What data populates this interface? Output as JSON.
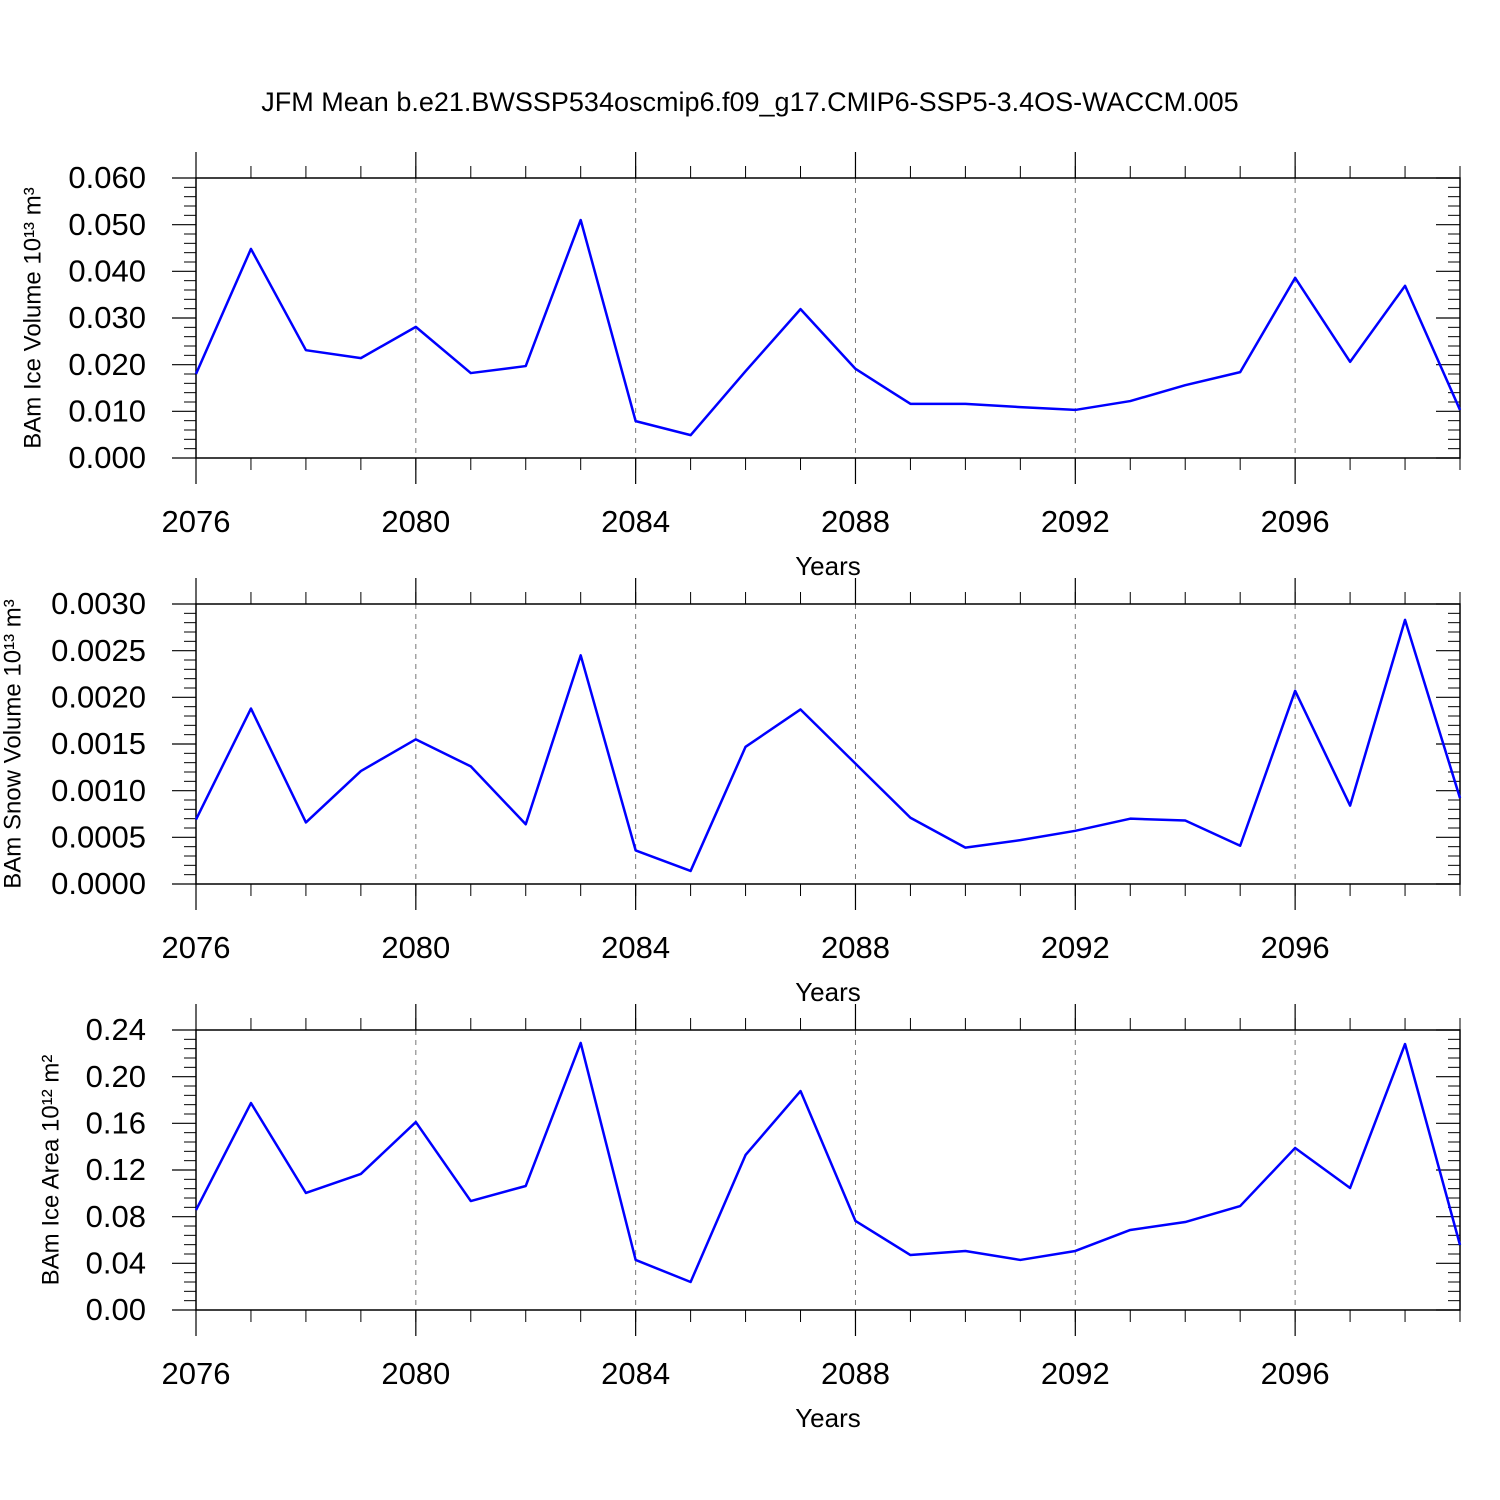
{
  "title": "JFM Mean b.e21.BWSSP534oscmip6.f09_g17.CMIP6-SSP5-3.4OS-WACCM.005",
  "chart_data": [
    {
      "type": "line",
      "ylabel": "BAm Ice Volume 10¹³ m³",
      "xlabel": "Years",
      "x": [
        2076,
        2077,
        2078,
        2079,
        2080,
        2081,
        2082,
        2083,
        2084,
        2085,
        2086,
        2087,
        2088,
        2089,
        2090,
        2091,
        2092,
        2093,
        2094,
        2095,
        2096,
        2097,
        2098,
        2099
      ],
      "series": [
        {
          "color": "#0000ff",
          "values": [
            0.018,
            0.0448,
            0.0231,
            0.0214,
            0.0281,
            0.0182,
            0.0197,
            0.051,
            0.0079,
            0.0049,
            0.0186,
            0.0319,
            0.0191,
            0.0116,
            0.0116,
            0.0109,
            0.0103,
            0.0122,
            0.0156,
            0.0184,
            0.0386,
            0.0206,
            0.0369,
            0.0103
          ]
        }
      ],
      "xlim": [
        2076,
        2099
      ],
      "xticks": [
        2076,
        2080,
        2084,
        2088,
        2092,
        2096
      ],
      "ylim": [
        0,
        0.06
      ],
      "yticks": [
        {
          "value": 0,
          "label": "0.000"
        },
        {
          "value": 0.01,
          "label": "0.010"
        },
        {
          "value": 0.02,
          "label": "0.020"
        },
        {
          "value": 0.03,
          "label": "0.030"
        },
        {
          "value": 0.04,
          "label": "0.040"
        },
        {
          "value": 0.05,
          "label": "0.050"
        },
        {
          "value": 0.06,
          "label": "0.060"
        }
      ],
      "grid": true
    },
    {
      "type": "line",
      "ylabel": "BAm Snow Volume 10¹³ m³",
      "xlabel": "Years",
      "x": [
        2076,
        2077,
        2078,
        2079,
        2080,
        2081,
        2082,
        2083,
        2084,
        2085,
        2086,
        2087,
        2088,
        2089,
        2090,
        2091,
        2092,
        2093,
        2094,
        2095,
        2096,
        2097,
        2098,
        2099
      ],
      "series": [
        {
          "color": "#0000ff",
          "values": [
            0.00069,
            0.00188,
            0.00066,
            0.00121,
            0.00155,
            0.00126,
            0.00064,
            0.00245,
            0.00036,
            0.00014,
            0.00147,
            0.00187,
            0.00129,
            0.00071,
            0.00039,
            0.00047,
            0.00057,
            0.0007,
            0.00068,
            0.00041,
            0.00207,
            0.00084,
            0.00283,
            0.00092
          ]
        }
      ],
      "xlim": [
        2076,
        2099
      ],
      "xticks": [
        2076,
        2080,
        2084,
        2088,
        2092,
        2096
      ],
      "ylim": [
        0,
        0.003
      ],
      "yticks": [
        {
          "value": 0,
          "label": "0.0000"
        },
        {
          "value": 0.0005,
          "label": "0.0005"
        },
        {
          "value": 0.001,
          "label": "0.0010"
        },
        {
          "value": 0.0015,
          "label": "0.0015"
        },
        {
          "value": 0.002,
          "label": "0.0020"
        },
        {
          "value": 0.0025,
          "label": "0.0025"
        },
        {
          "value": 0.003,
          "label": "0.0030"
        }
      ],
      "grid": true
    },
    {
      "type": "line",
      "ylabel": "BAm Ice Area 10¹² m²",
      "xlabel": "Years",
      "x": [
        2076,
        2077,
        2078,
        2079,
        2080,
        2081,
        2082,
        2083,
        2084,
        2085,
        2086,
        2087,
        2088,
        2089,
        2090,
        2091,
        2092,
        2093,
        2094,
        2095,
        2096,
        2097,
        2098,
        2099
      ],
      "series": [
        {
          "color": "#0000ff",
          "values": [
            0.0857,
            0.1774,
            0.1003,
            0.1166,
            0.1611,
            0.0934,
            0.1063,
            0.2289,
            0.0429,
            0.024,
            0.1329,
            0.1877,
            0.0763,
            0.0471,
            0.0506,
            0.0429,
            0.0506,
            0.0686,
            0.0754,
            0.0891,
            0.1389,
            0.1046,
            0.228,
            0.0557
          ]
        }
      ],
      "xlim": [
        2076,
        2099
      ],
      "xticks": [
        2076,
        2080,
        2084,
        2088,
        2092,
        2096
      ],
      "ylim": [
        0,
        0.24
      ],
      "yticks": [
        {
          "value": 0,
          "label": "0.00"
        },
        0.04,
        0.08,
        0.12,
        0.16,
        {
          "value": 0.2,
          "label": "0.20"
        },
        0.24
      ],
      "grid": true
    }
  ]
}
